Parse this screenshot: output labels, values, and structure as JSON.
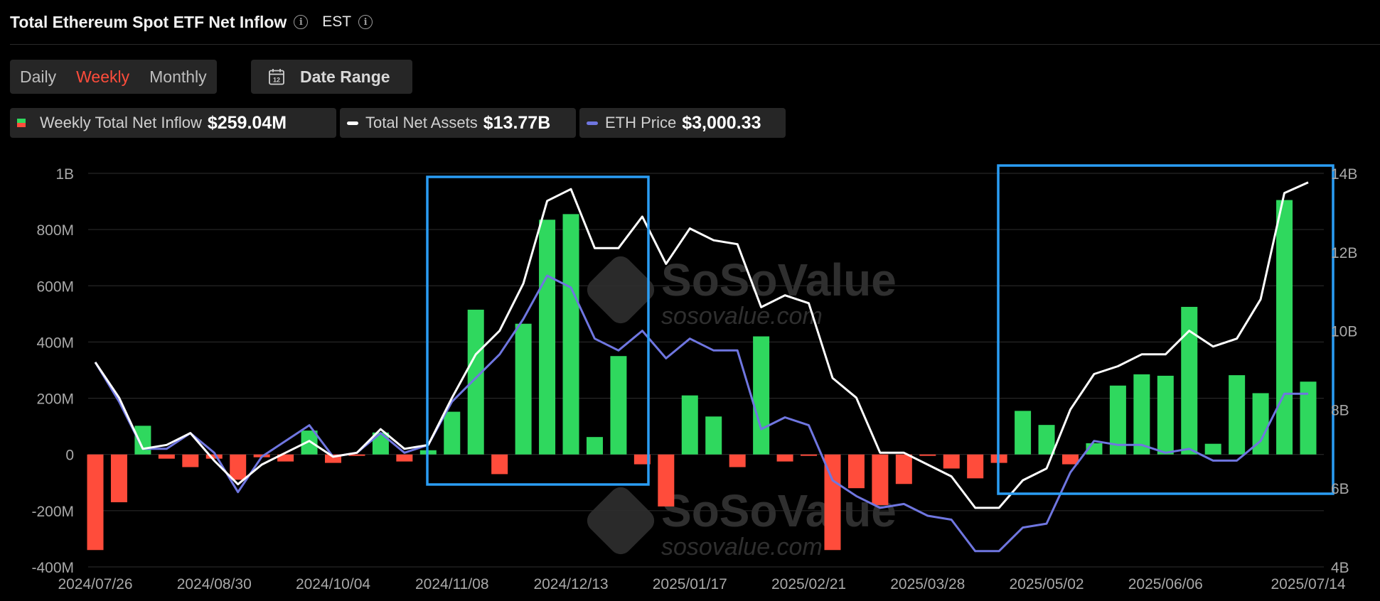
{
  "header": {
    "title": "Total Ethereum Spot ETF Net Inflow",
    "timezone": "EST"
  },
  "controls": {
    "periods": [
      "Daily",
      "Weekly",
      "Monthly"
    ],
    "active_period": "Weekly",
    "date_range_label": "Date Range"
  },
  "legend": {
    "inflow_label": "Weekly Total Net Inflow",
    "inflow_value": "$259.04M",
    "assets_label": "Total Net Assets",
    "assets_value": "$13.77B",
    "price_label": "ETH Price",
    "price_value": "$3,000.33"
  },
  "watermarks": [
    {
      "brand": "SoSoValue",
      "site": "sosovalue.com"
    },
    {
      "brand": "SoSoValue",
      "site": "sosovalue.com"
    }
  ],
  "colors": {
    "inflow_positive": "#2fd85e",
    "inflow_negative": "#ff4c3b",
    "assets_line": "#ffffff",
    "price_line": "#6f76e0",
    "highlight_box": "#2a9df4",
    "grid": "#2e2e2e",
    "tick_text": "#a8a8a8"
  },
  "chart_data": {
    "type": "bar",
    "x": [
      "2024/07/26",
      "2024/08/02",
      "2024/08/09",
      "2024/08/16",
      "2024/08/23",
      "2024/08/30",
      "2024/09/06",
      "2024/09/13",
      "2024/09/20",
      "2024/09/27",
      "2024/10/04",
      "2024/10/11",
      "2024/10/18",
      "2024/10/25",
      "2024/11/01",
      "2024/11/08",
      "2024/11/15",
      "2024/11/22",
      "2024/11/29",
      "2024/12/06",
      "2024/12/13",
      "2024/12/20",
      "2024/12/27",
      "2025/01/03",
      "2025/01/10",
      "2025/01/17",
      "2025/01/24",
      "2025/01/31",
      "2025/02/07",
      "2025/02/14",
      "2025/02/21",
      "2025/02/28",
      "2025/03/07",
      "2025/03/14",
      "2025/03/21",
      "2025/03/28",
      "2025/04/04",
      "2025/04/11",
      "2025/04/18",
      "2025/04/25",
      "2025/05/02",
      "2025/05/09",
      "2025/05/16",
      "2025/05/23",
      "2025/05/30",
      "2025/06/06",
      "2025/06/13",
      "2025/06/20",
      "2025/06/27",
      "2025/07/04",
      "2025/07/11",
      "2025/07/14"
    ],
    "x_tick_labels": [
      "2024/07/26",
      "2024/08/30",
      "2024/10/04",
      "2024/11/08",
      "2024/12/13",
      "2025/01/17",
      "2025/02/21",
      "2025/03/28",
      "2025/05/02",
      "2025/06/06",
      "2025/07/14"
    ],
    "series": [
      {
        "name": "Weekly Total Net Inflow",
        "type": "bar",
        "axis": "left",
        "values": [
          -340,
          -170,
          102,
          -15,
          -45,
          -15,
          -90,
          -10,
          -25,
          85,
          -30,
          -5,
          78,
          -25,
          15,
          152,
          515,
          -70,
          465,
          835,
          855,
          62,
          350,
          -35,
          -185,
          210,
          135,
          -45,
          420,
          -25,
          -5,
          -340,
          -120,
          -180,
          -105,
          -5,
          -50,
          -85,
          -30,
          155,
          105,
          -35,
          40,
          245,
          285,
          280,
          525,
          38,
          282,
          218,
          905,
          259
        ]
      },
      {
        "name": "Total Net Assets",
        "type": "line",
        "axis": "right",
        "values": [
          9.2,
          8.3,
          7.0,
          7.1,
          7.4,
          6.7,
          6.1,
          6.6,
          6.9,
          7.2,
          6.8,
          6.9,
          7.5,
          7.0,
          7.1,
          8.3,
          9.4,
          10.0,
          11.2,
          13.3,
          13.6,
          12.1,
          12.1,
          12.9,
          11.7,
          12.6,
          12.3,
          12.2,
          10.6,
          10.9,
          10.7,
          8.8,
          8.3,
          6.9,
          6.9,
          6.6,
          6.3,
          5.5,
          5.5,
          6.2,
          6.5,
          8.0,
          8.9,
          9.1,
          9.4,
          9.4,
          10.0,
          9.6,
          9.8,
          10.8,
          13.5,
          13.77
        ]
      },
      {
        "name": "ETH Price",
        "type": "line",
        "axis": "right",
        "values": [
          9.2,
          8.2,
          7.0,
          7.0,
          7.4,
          6.9,
          5.9,
          6.8,
          7.2,
          7.6,
          6.8,
          6.9,
          7.4,
          6.9,
          7.1,
          8.2,
          8.8,
          9.4,
          10.3,
          11.4,
          11.1,
          9.8,
          9.5,
          10.0,
          9.3,
          9.8,
          9.5,
          9.5,
          7.5,
          7.8,
          7.6,
          6.2,
          5.8,
          5.5,
          5.6,
          5.3,
          5.2,
          4.4,
          4.4,
          5.0,
          5.1,
          6.4,
          7.2,
          7.1,
          7.1,
          6.9,
          7.0,
          6.7,
          6.7,
          7.2,
          8.4,
          8.4
        ]
      }
    ],
    "y_left": {
      "ticks": [
        "1B",
        "800M",
        "600M",
        "400M",
        "200M",
        "0",
        "-200M",
        "-400M"
      ],
      "ylim": [
        -400,
        1000
      ],
      "unit": "M"
    },
    "y_right": {
      "ticks": [
        "14B",
        "12B",
        "10B",
        "8B",
        "6B",
        "4B"
      ],
      "ylim": [
        4,
        14
      ],
      "unit": "B"
    },
    "grid": true,
    "highlights": [
      {
        "from": "2024/11/08",
        "to": "2024/12/27"
      },
      {
        "from": "2025/04/25",
        "to": "2025/07/14"
      }
    ]
  }
}
